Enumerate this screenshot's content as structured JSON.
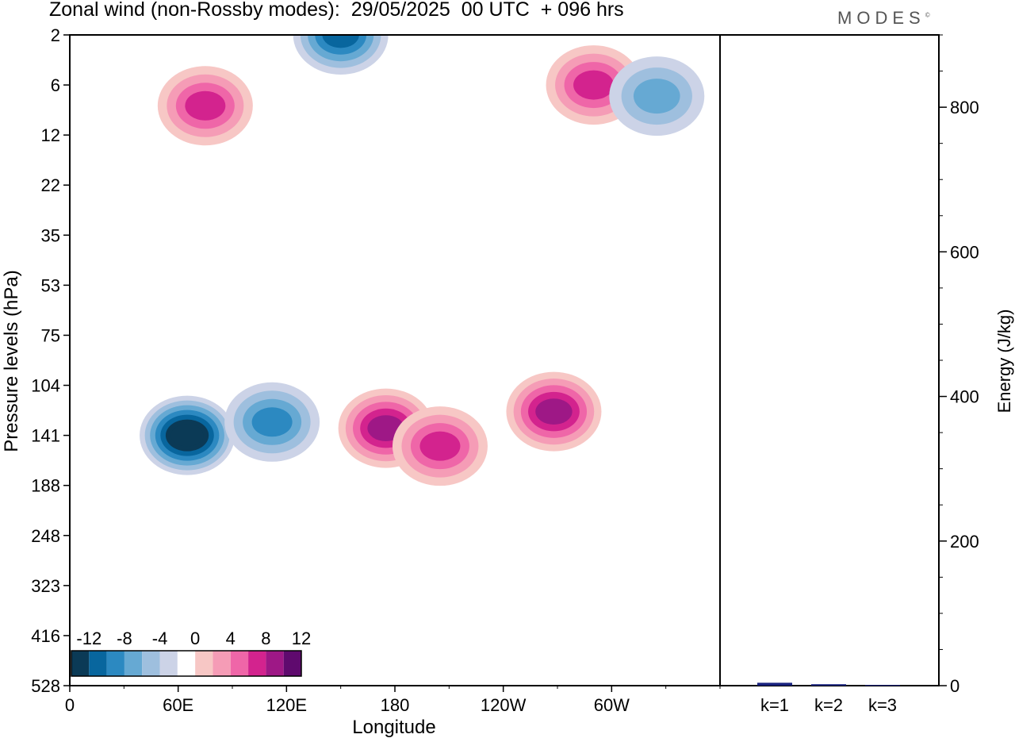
{
  "title": "Zonal wind (non-Rossby modes):  29/05/2025  00 UTC  + 096 hrs",
  "logo": "MODES",
  "colors": {
    "neg": [
      "#0b3a56",
      "#08669e",
      "#2c89c1",
      "#66a9d3",
      "#9ebfde",
      "#ccd3e7"
    ],
    "zero": "#ffffff",
    "pos": [
      "#f7c7c5",
      "#f59cb6",
      "#ef66a8",
      "#d3238e",
      "#9e1886",
      "#5f0a6e"
    ],
    "bar": "#1a237e"
  },
  "chart_data": [
    {
      "type": "heatmap",
      "title": "Zonal wind (non-Rossby modes):  29/05/2025  00 UTC  + 096 hrs",
      "xlabel": "Longitude",
      "ylabel": "Pressure levels (hPa)",
      "x_ticks": [
        "0",
        "60E",
        "120E",
        "180",
        "120W",
        "60W"
      ],
      "y_ticks": [
        "2",
        "6",
        "12",
        "22",
        "35",
        "53",
        "75",
        "104",
        "141",
        "188",
        "248",
        "323",
        "416",
        "528"
      ],
      "colorbar_labels": [
        "-12",
        "-8",
        "-4",
        "0",
        "4",
        "8",
        "12"
      ],
      "features": [
        {
          "lon": 65,
          "plev": 141,
          "value": -14
        },
        {
          "lon": 112,
          "plev": 130,
          "value": -8
        },
        {
          "lon": 150,
          "plev": 2,
          "value": -10
        },
        {
          "lon": 175,
          "plev": 135,
          "value": 10
        },
        {
          "lon": 205,
          "plev": 150,
          "value": 9
        },
        {
          "lon": 268,
          "plev": 122,
          "value": 10
        },
        {
          "lon": 75,
          "plev": 8,
          "value": 9
        },
        {
          "lon": 290,
          "plev": 6,
          "value": 8
        },
        {
          "lon": 325,
          "plev": 7,
          "value": -7
        }
      ]
    },
    {
      "type": "bar",
      "categories": [
        "k=1",
        "k=2",
        "k=3"
      ],
      "values": [
        4,
        2,
        1
      ],
      "ylabel": "Energy (J/kg)",
      "ylim": [
        0,
        900
      ],
      "y_ticks": [
        0,
        200,
        400,
        600,
        800
      ]
    }
  ]
}
